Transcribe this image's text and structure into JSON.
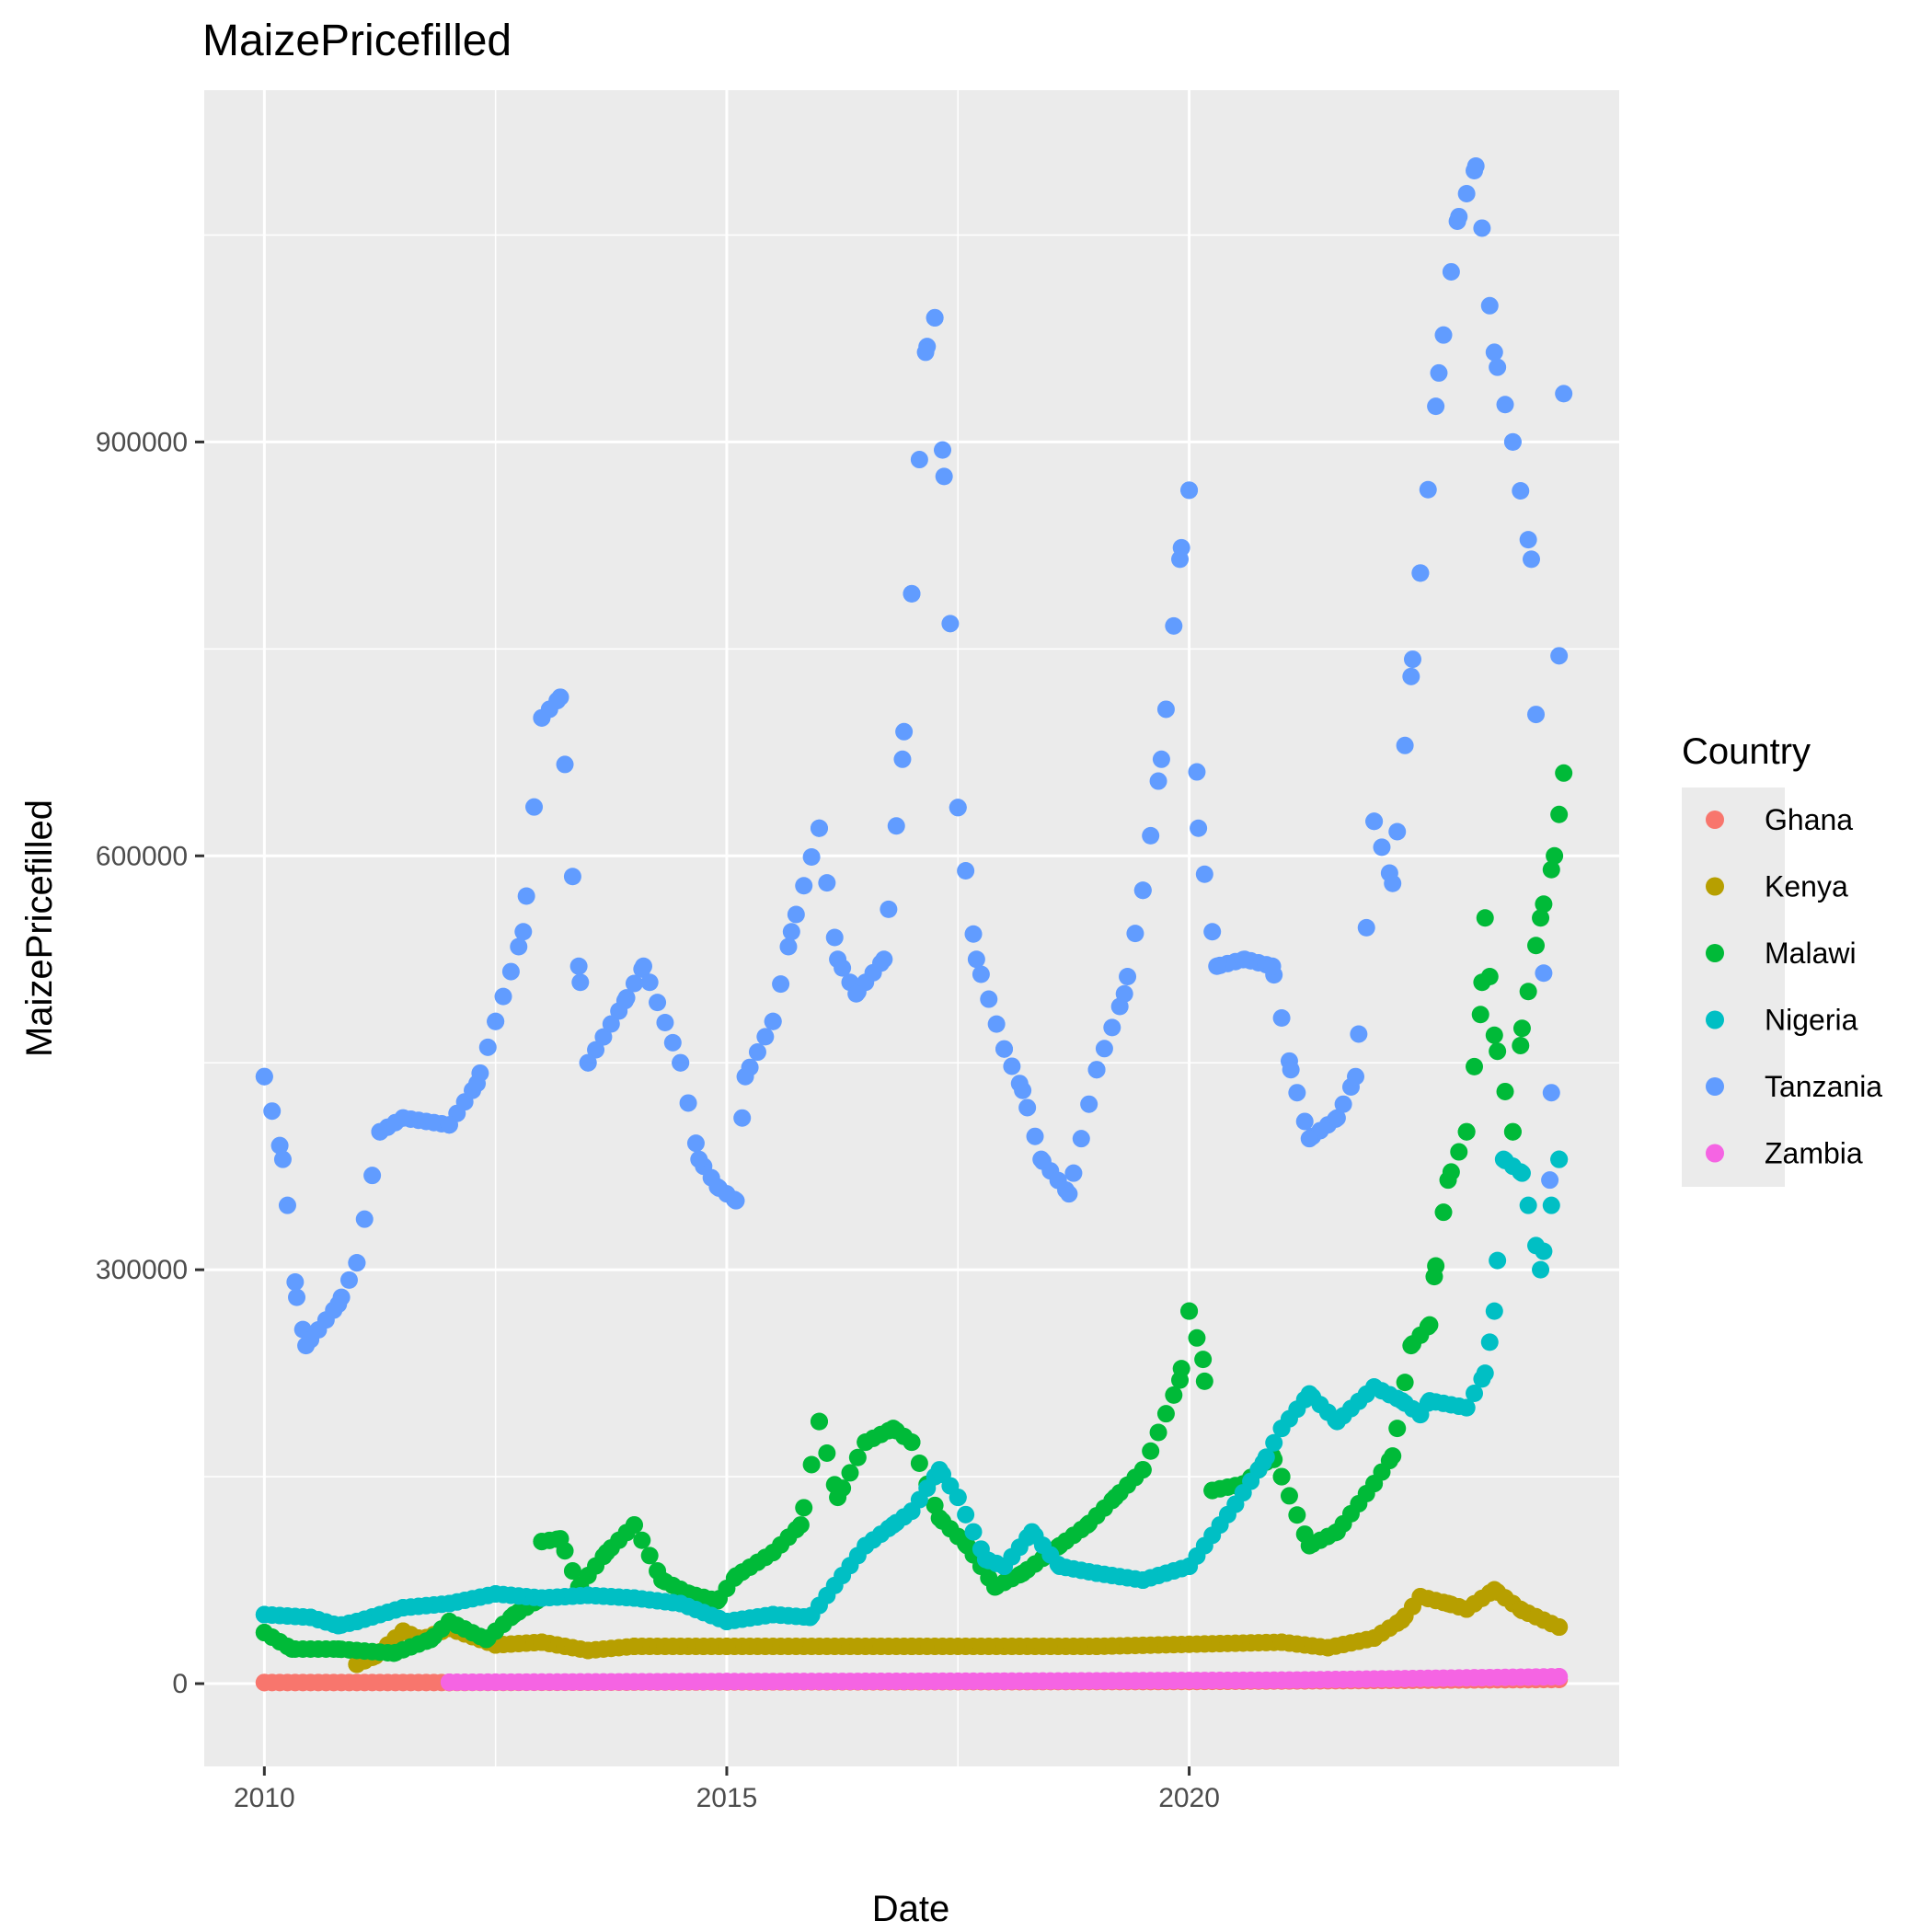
{
  "chart_data": {
    "type": "scatter",
    "title": "MaizePricefilled",
    "xlabel": "Date",
    "ylabel": "MaizePricefilled",
    "xlim": [
      2009.35,
      2024.65
    ],
    "ylim": [
      -60000,
      1155000
    ],
    "x_ticks": [
      2010,
      2015,
      2020
    ],
    "y_ticks": [
      0,
      300000,
      600000,
      900000
    ],
    "x_tick_labels": [
      "2010",
      "2015",
      "2020"
    ],
    "y_tick_labels": [
      "0",
      "300000",
      "600000",
      "900000"
    ],
    "grid": true,
    "legend": {
      "title": "Country",
      "position": "right"
    },
    "point_series_keyframes_note": "",
    "series": [
      {
        "name": "Ghana",
        "color": "#F8766D",
        "keyframes": [
          [
            2010.0,
            800
          ],
          [
            2012.0,
            800
          ],
          [
            2015.0,
            1200
          ],
          [
            2020.0,
            1500
          ],
          [
            2024.0,
            3000
          ]
        ]
      },
      {
        "name": "Kenya",
        "color": "#B79F00",
        "keyframes": [
          [
            2011.0,
            14000
          ],
          [
            2011.2,
            20000
          ],
          [
            2011.5,
            38000
          ],
          [
            2011.7,
            32000
          ],
          [
            2012.0,
            40000
          ],
          [
            2012.5,
            28000
          ],
          [
            2013.0,
            30000
          ],
          [
            2013.5,
            24000
          ],
          [
            2014.0,
            27000
          ],
          [
            2015.0,
            27000
          ],
          [
            2017.0,
            27000
          ],
          [
            2019.0,
            27000
          ],
          [
            2021.0,
            30000
          ],
          [
            2021.5,
            26000
          ],
          [
            2022.0,
            33000
          ],
          [
            2022.3,
            46000
          ],
          [
            2022.5,
            63000
          ],
          [
            2022.8,
            58000
          ],
          [
            2023.0,
            54000
          ],
          [
            2023.3,
            68000
          ],
          [
            2023.6,
            53000
          ],
          [
            2024.0,
            41000
          ]
        ]
      },
      {
        "name": "Malawi",
        "color": "#00BA38",
        "keyframes": [
          [
            2010.0,
            37000
          ],
          [
            2010.3,
            25000
          ],
          [
            2010.8,
            25000
          ],
          [
            2011.4,
            22000
          ],
          [
            2011.8,
            32000
          ],
          [
            2012.0,
            45000
          ],
          [
            2012.4,
            32000
          ],
          [
            2012.7,
            50000
          ],
          [
            2012.95,
            60000
          ],
          [
            2013.0,
            103000
          ],
          [
            2013.2,
            105000
          ],
          [
            2013.4,
            70000
          ],
          [
            2013.7,
            95000
          ],
          [
            2014.0,
            115000
          ],
          [
            2014.3,
            75000
          ],
          [
            2014.6,
            65000
          ],
          [
            2014.9,
            60000
          ],
          [
            2015.1,
            78000
          ],
          [
            2015.5,
            95000
          ],
          [
            2015.8,
            115000
          ],
          [
            2016.0,
            190000
          ],
          [
            2016.2,
            135000
          ],
          [
            2016.5,
            175000
          ],
          [
            2016.8,
            185000
          ],
          [
            2017.0,
            175000
          ],
          [
            2017.3,
            120000
          ],
          [
            2017.6,
            100000
          ],
          [
            2017.9,
            70000
          ],
          [
            2018.2,
            80000
          ],
          [
            2018.6,
            100000
          ],
          [
            2018.9,
            115000
          ],
          [
            2019.2,
            135000
          ],
          [
            2019.5,
            155000
          ],
          [
            2019.9,
            220000
          ],
          [
            2020.0,
            270000
          ],
          [
            2020.15,
            235000
          ],
          [
            2020.25,
            140000
          ],
          [
            2020.6,
            145000
          ],
          [
            2020.9,
            165000
          ],
          [
            2021.0,
            150000
          ],
          [
            2021.3,
            100000
          ],
          [
            2021.6,
            110000
          ],
          [
            2022.0,
            145000
          ],
          [
            2022.2,
            165000
          ],
          [
            2022.4,
            245000
          ],
          [
            2022.6,
            260000
          ],
          [
            2022.65,
            295000
          ],
          [
            2022.8,
            365000
          ],
          [
            2023.0,
            400000
          ],
          [
            2023.15,
            485000
          ],
          [
            2023.2,
            555000
          ],
          [
            2023.3,
            470000
          ],
          [
            2023.5,
            400000
          ],
          [
            2023.6,
            475000
          ],
          [
            2023.8,
            555000
          ],
          [
            2023.95,
            600000
          ],
          [
            2024.05,
            660000
          ]
        ]
      },
      {
        "name": "Nigeria",
        "color": "#00BFC4",
        "keyframes": [
          [
            2010.0,
            50000
          ],
          [
            2010.5,
            48000
          ],
          [
            2010.8,
            42000
          ],
          [
            2011.0,
            45000
          ],
          [
            2011.5,
            55000
          ],
          [
            2012.0,
            58000
          ],
          [
            2012.5,
            65000
          ],
          [
            2013.0,
            62000
          ],
          [
            2013.5,
            64000
          ],
          [
            2014.0,
            62000
          ],
          [
            2014.5,
            58000
          ],
          [
            2015.0,
            45000
          ],
          [
            2015.5,
            50000
          ],
          [
            2015.9,
            48000
          ],
          [
            2016.5,
            100000
          ],
          [
            2016.8,
            115000
          ],
          [
            2017.0,
            125000
          ],
          [
            2017.3,
            155000
          ],
          [
            2017.5,
            135000
          ],
          [
            2017.8,
            90000
          ],
          [
            2018.0,
            85000
          ],
          [
            2018.3,
            110000
          ],
          [
            2018.6,
            85000
          ],
          [
            2019.0,
            80000
          ],
          [
            2019.5,
            75000
          ],
          [
            2020.0,
            85000
          ],
          [
            2020.5,
            130000
          ],
          [
            2020.8,
            160000
          ],
          [
            2021.0,
            185000
          ],
          [
            2021.3,
            210000
          ],
          [
            2021.6,
            190000
          ],
          [
            2022.0,
            215000
          ],
          [
            2022.3,
            205000
          ],
          [
            2022.5,
            195000
          ],
          [
            2022.6,
            205000
          ],
          [
            2023.0,
            200000
          ],
          [
            2023.2,
            225000
          ],
          [
            2023.3,
            270000
          ],
          [
            2023.4,
            380000
          ],
          [
            2023.6,
            370000
          ],
          [
            2023.8,
            300000
          ],
          [
            2024.0,
            380000
          ]
        ]
      },
      {
        "name": "Tanzania",
        "color": "#619CFF",
        "keyframes": [
          [
            2010.0,
            440000
          ],
          [
            2010.2,
            380000
          ],
          [
            2010.35,
            280000
          ],
          [
            2010.45,
            245000
          ],
          [
            2010.8,
            275000
          ],
          [
            2011.0,
            305000
          ],
          [
            2011.25,
            400000
          ],
          [
            2011.5,
            410000
          ],
          [
            2012.0,
            405000
          ],
          [
            2012.3,
            435000
          ],
          [
            2012.5,
            480000
          ],
          [
            2012.8,
            545000
          ],
          [
            2013.0,
            700000
          ],
          [
            2013.2,
            715000
          ],
          [
            2013.4,
            520000
          ],
          [
            2013.5,
            450000
          ],
          [
            2013.9,
            495000
          ],
          [
            2014.1,
            520000
          ],
          [
            2014.5,
            450000
          ],
          [
            2014.7,
            380000
          ],
          [
            2014.9,
            360000
          ],
          [
            2015.1,
            350000
          ],
          [
            2015.2,
            440000
          ],
          [
            2015.5,
            480000
          ],
          [
            2015.7,
            545000
          ],
          [
            2016.0,
            620000
          ],
          [
            2016.2,
            525000
          ],
          [
            2016.4,
            500000
          ],
          [
            2016.7,
            525000
          ],
          [
            2016.9,
            670000
          ],
          [
            2017.0,
            790000
          ],
          [
            2017.15,
            965000
          ],
          [
            2017.25,
            990000
          ],
          [
            2017.35,
            875000
          ],
          [
            2017.5,
            635000
          ],
          [
            2017.7,
            525000
          ],
          [
            2018.0,
            460000
          ],
          [
            2018.2,
            430000
          ],
          [
            2018.4,
            380000
          ],
          [
            2018.7,
            355000
          ],
          [
            2019.0,
            445000
          ],
          [
            2019.3,
            500000
          ],
          [
            2019.5,
            575000
          ],
          [
            2019.7,
            670000
          ],
          [
            2019.9,
            815000
          ],
          [
            2020.0,
            865000
          ],
          [
            2020.1,
            620000
          ],
          [
            2020.3,
            520000
          ],
          [
            2020.6,
            525000
          ],
          [
            2020.9,
            520000
          ],
          [
            2021.1,
            445000
          ],
          [
            2021.3,
            395000
          ],
          [
            2021.6,
            410000
          ],
          [
            2021.8,
            440000
          ],
          [
            2022.0,
            625000
          ],
          [
            2022.2,
            580000
          ],
          [
            2022.4,
            730000
          ],
          [
            2022.5,
            805000
          ],
          [
            2022.7,
            950000
          ],
          [
            2022.9,
            1060000
          ],
          [
            2023.1,
            1100000
          ],
          [
            2023.3,
            965000
          ],
          [
            2023.5,
            900000
          ],
          [
            2023.7,
            815000
          ],
          [
            2023.9,
            365000
          ],
          [
            2024.05,
            935000
          ]
        ]
      },
      {
        "name": "Zambia",
        "color": "#F564E3",
        "keyframes": [
          [
            2012.0,
            1000
          ],
          [
            2015.0,
            1500
          ],
          [
            2018.0,
            1800
          ],
          [
            2021.0,
            2500
          ],
          [
            2024.0,
            5000
          ]
        ]
      }
    ]
  }
}
